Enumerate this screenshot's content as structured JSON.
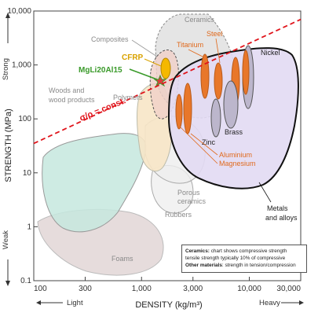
{
  "chart_data": {
    "type": "scatter",
    "xlabel": "DENSITY (kg/m³)",
    "ylabel": "STRENGTH (MPa)",
    "xscale": "log",
    "yscale": "log",
    "xlim": [
      100,
      30000
    ],
    "ylim": [
      0.1,
      10000
    ],
    "x_ticks": [
      "100",
      "300",
      "1,000",
      "3,000",
      "10,000",
      "30,000"
    ],
    "y_ticks": [
      "10,000",
      "1,000",
      "100",
      "10",
      "1",
      "0.1"
    ],
    "x_side_labels": {
      "low": "Light",
      "high": "Heavy"
    },
    "y_side_labels": {
      "low": "Weak",
      "high": "Strong"
    },
    "regions": [
      {
        "name": "Ceramics",
        "color": "#bbbbbb"
      },
      {
        "name": "Composites",
        "color": "#f0d0c8"
      },
      {
        "name": "Woods and wood products",
        "color": "#c5e8de"
      },
      {
        "name": "Polymers",
        "color": "#f7e6c6"
      },
      {
        "name": "Porous ceramics",
        "color": "#eeeeee"
      },
      {
        "name": "Rubbers",
        "color": "#f2f2f2"
      },
      {
        "name": "Foams",
        "color": "#e6dcdc"
      },
      {
        "name": "Metals and alloys",
        "color": "#e2daf3"
      }
    ],
    "labels": {
      "ceramics": "Ceramics",
      "composites": "Composites",
      "woods": "Woods and",
      "woods2": "wood products",
      "polymers": "Polymers",
      "porous": "Porous",
      "porous2": "ceramics",
      "rubbers": "Rubbers",
      "foams": "Foams",
      "metals": "Metals",
      "metals2": "and alloys"
    },
    "metal_labels": [
      "Steel",
      "Titanium",
      "Nickel",
      "Zinc",
      "Brass",
      "Aluminium",
      "Magnesium"
    ],
    "highlight": [
      {
        "label": "CFRP",
        "x": 1700,
        "y": 700,
        "color": "#f5b800"
      },
      {
        "label": "MgLi20Al15",
        "x": 1330,
        "y": 430,
        "color": "#3a9a2a"
      }
    ],
    "trend_line": {
      "label": "σ/ρ = const.",
      "x0": 100,
      "y0": 35,
      "x1": 30000,
      "y1": 7000,
      "style": "dashed",
      "color": "#e0141b"
    },
    "note": {
      "line1_bold": "Ceramics:",
      "line1": "chart shows compressive strength",
      "line2": "tensile strength typically 10% of compressive",
      "line3_bold": "Other materials",
      "line3": ": strength in tension/compression"
    }
  }
}
